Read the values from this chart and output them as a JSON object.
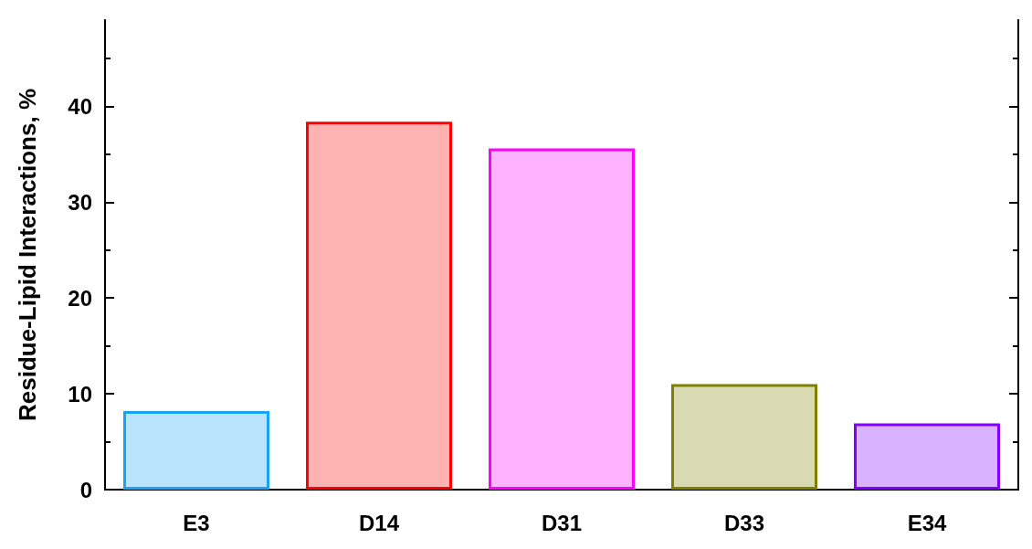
{
  "chart_data": {
    "type": "bar",
    "ylabel": "Residue-Lipid Interactions, %",
    "categories": [
      "E3",
      "D14",
      "D31",
      "D33",
      "E34"
    ],
    "values": [
      8.2,
      38.4,
      35.6,
      11.0,
      6.9
    ],
    "colors": [
      "#1aa3f5",
      "#ff0000",
      "#ff00ff",
      "#808000",
      "#8000ff"
    ],
    "ylim": [
      0,
      49
    ],
    "yticks": [
      0,
      10,
      20,
      30,
      40
    ],
    "grid": false
  }
}
